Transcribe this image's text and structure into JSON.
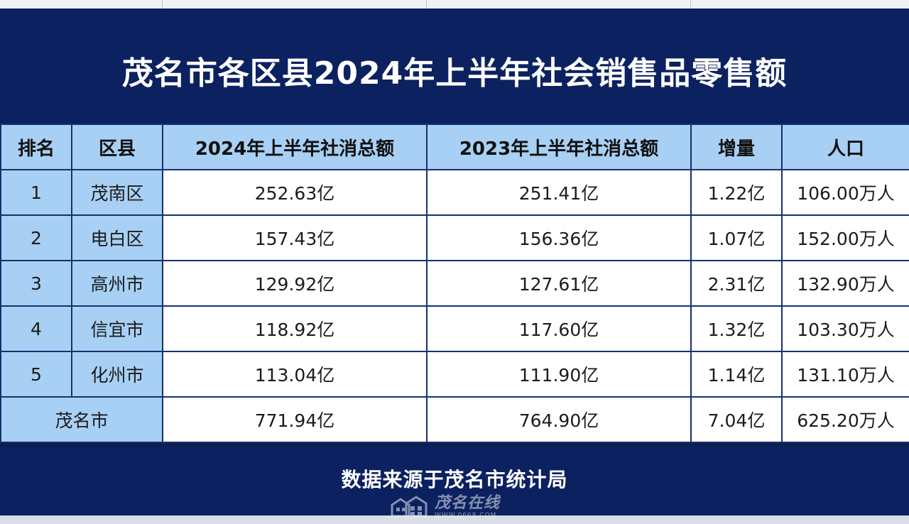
{
  "title": "茂名市各区县2024年上半年社会销售品零售额",
  "table": {
    "headers": [
      "排名",
      "区县",
      "2024年上半年社消总额",
      "2023年上半年社消总额",
      "增量",
      "人口"
    ],
    "rows": [
      {
        "rank": "1",
        "county": "茂南区",
        "y2024": "252.63亿",
        "y2023": "251.41亿",
        "increase": "1.22亿",
        "population": "106.00万人"
      },
      {
        "rank": "2",
        "county": "电白区",
        "y2024": "157.43亿",
        "y2023": "156.36亿",
        "increase": "1.07亿",
        "population": "152.00万人"
      },
      {
        "rank": "3",
        "county": "高州市",
        "y2024": "129.92亿",
        "y2023": "127.61亿",
        "increase": "2.31亿",
        "population": "132.90万人"
      },
      {
        "rank": "4",
        "county": "信宜市",
        "y2024": "118.92亿",
        "y2023": "117.60亿",
        "increase": "1.32亿",
        "population": "103.30万人"
      },
      {
        "rank": "5",
        "county": "化州市",
        "y2024": "113.04亿",
        "y2023": "111.90亿",
        "increase": "1.14亿",
        "population": "131.10万人"
      }
    ],
    "total": {
      "label": "茂名市",
      "y2024": "771.94亿",
      "y2023": "764.90亿",
      "increase": "7.04亿",
      "population": "625.20万人"
    }
  },
  "source": "数据来源于茂名市统计局",
  "watermark": {
    "name": "茂名在线",
    "url": "WWW.0668.COM"
  },
  "colors": {
    "band": "#0c2160",
    "header_fill": "#a8d0f4",
    "border": "#17306f"
  }
}
